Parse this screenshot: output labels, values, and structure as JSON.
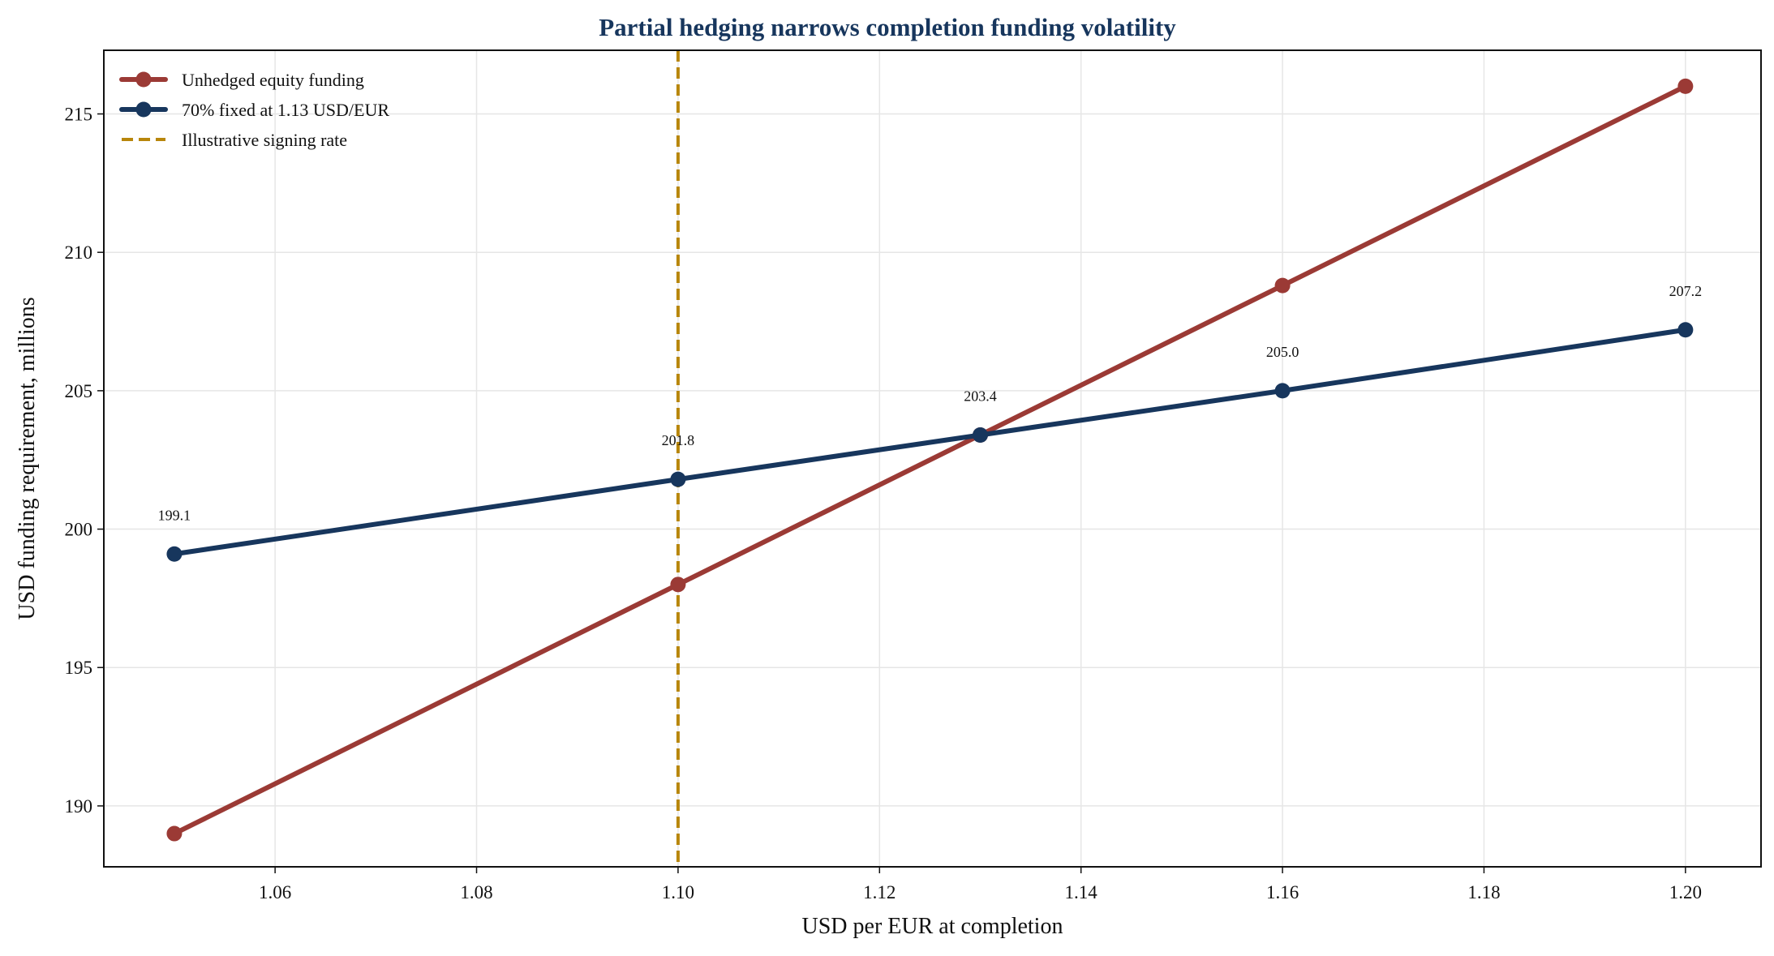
{
  "chart_data": {
    "type": "line",
    "title": "Partial hedging narrows completion funding volatility",
    "xlabel": "USD per EUR at completion",
    "ylabel": "USD funding requirement, millions",
    "xlim": [
      1.043,
      1.2075
    ],
    "ylim": [
      187.8,
      217.3
    ],
    "xticks": [
      1.06,
      1.08,
      1.1,
      1.12,
      1.14,
      1.16,
      1.18,
      1.2
    ],
    "xtick_labels": [
      "1.06",
      "1.08",
      "1.10",
      "1.12",
      "1.14",
      "1.16",
      "1.18",
      "1.20"
    ],
    "yticks": [
      190,
      195,
      200,
      205,
      210,
      215
    ],
    "ytick_labels": [
      "190",
      "195",
      "200",
      "205",
      "210",
      "215"
    ],
    "grid": true,
    "legend_position": "top-left",
    "series": [
      {
        "name": "Unhedged equity funding",
        "color": "#9b3a35",
        "x": [
          1.05,
          1.1,
          1.13,
          1.16,
          1.2
        ],
        "y": [
          189.0,
          198.0,
          203.4,
          208.8,
          216.0
        ]
      },
      {
        "name": "70% fixed at 1.13 USD/EUR",
        "color": "#17365d",
        "x": [
          1.05,
          1.1,
          1.13,
          1.16,
          1.2
        ],
        "y": [
          199.1,
          201.8,
          203.4,
          205.0,
          207.2
        ],
        "labels": [
          "199.1",
          "201.8",
          "203.4",
          "205.0",
          "207.2"
        ]
      }
    ],
    "reference_line": {
      "name": "Illustrative signing rate",
      "x": 1.1,
      "color": "#b8860b",
      "style": "dashed"
    },
    "colors": {
      "title": "#17365d",
      "grid": "#e6e6e6",
      "axis": "#111111"
    }
  }
}
